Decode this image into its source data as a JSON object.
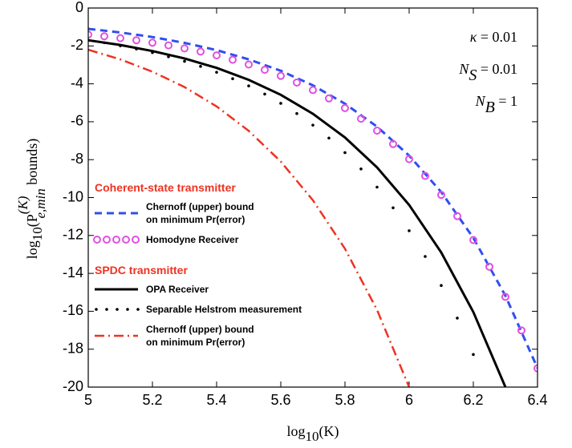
{
  "chart_data": {
    "type": "line",
    "xlabel": {
      "pre": "log",
      "sub": "10",
      "post": "(K)"
    },
    "ylabel": {
      "pre": "log",
      "sub": "10",
      "mid": "(P",
      "sup": "(K)",
      "sub2": "e,min",
      "post": " bounds)"
    },
    "annotations": [
      {
        "base": "κ",
        "tail": " = 0.01"
      },
      {
        "base": "N",
        "sub": "S",
        "tail": " = 0.01"
      },
      {
        "base": "N",
        "sub": "B",
        "tail": " = 1"
      }
    ],
    "xlim": [
      5,
      6.4
    ],
    "ylim": [
      -20,
      0
    ],
    "xticks": [
      5,
      5.2,
      5.4,
      5.6,
      5.8,
      6,
      6.2,
      6.4
    ],
    "yticks": [
      0,
      -2,
      -4,
      -6,
      -8,
      -10,
      -12,
      -14,
      -16,
      -18,
      -20
    ],
    "grid": false,
    "series": [
      {
        "name": "Chernoff (upper) bound\non minimum Pr(error)",
        "group": "Coherent-state transmitter",
        "style": "dashed",
        "color": "#2f4ff0",
        "x": [
          5,
          5.1,
          5.2,
          5.3,
          5.4,
          5.5,
          5.6,
          5.7,
          5.8,
          5.9,
          6,
          6.1,
          6.2,
          6.3,
          6.4
        ],
        "values": [
          -1.1,
          -1.29,
          -1.53,
          -1.84,
          -2.22,
          -2.71,
          -3.31,
          -4.08,
          -5.05,
          -6.26,
          -7.79,
          -9.71,
          -12.13,
          -15.18,
          -19.0
        ]
      },
      {
        "name": "Homodyne Receiver",
        "group": "Coherent-state transmitter",
        "style": "circles",
        "color": "#e050e0",
        "x": [
          5,
          5.05,
          5.1,
          5.15,
          5.2,
          5.25,
          5.3,
          5.35,
          5.4,
          5.45,
          5.5,
          5.55,
          5.6,
          5.65,
          5.7,
          5.75,
          5.8,
          5.85,
          5.9,
          5.95,
          6,
          6.05,
          6.1,
          6.15,
          6.2,
          6.25,
          6.3,
          6.35,
          6.4
        ],
        "values": [
          -1.4,
          -1.49,
          -1.59,
          -1.7,
          -1.83,
          -1.97,
          -2.13,
          -2.3,
          -2.5,
          -2.73,
          -2.98,
          -3.26,
          -3.58,
          -3.93,
          -4.33,
          -4.77,
          -5.28,
          -5.84,
          -6.47,
          -7.18,
          -7.97,
          -8.86,
          -9.86,
          -10.98,
          -12.24,
          -13.65,
          -15.24,
          -17.01,
          -19.01
        ]
      },
      {
        "name": "OPA Receiver",
        "group": "SPDC transmitter",
        "style": "solid",
        "color": "#000000",
        "x": [
          5,
          5.1,
          5.2,
          5.3,
          5.4,
          5.5,
          5.6,
          5.7,
          5.8,
          5.9,
          6,
          6.1,
          6.2,
          6.3
        ],
        "values": [
          -1.7,
          -1.95,
          -2.27,
          -2.66,
          -3.16,
          -3.79,
          -4.58,
          -5.58,
          -6.83,
          -8.41,
          -10.39,
          -12.9,
          -16.04,
          -20.0
        ]
      },
      {
        "name": "Separable Helstrom measurement",
        "group": "SPDC transmitter",
        "style": "dots",
        "color": "#000000",
        "x": [
          5,
          5.05,
          5.1,
          5.15,
          5.2,
          5.25,
          5.3,
          5.35,
          5.4,
          5.45,
          5.5,
          5.55,
          5.6,
          5.65,
          5.7,
          5.75,
          5.8,
          5.85,
          5.9,
          5.95,
          6,
          6.05,
          6.1,
          6.15,
          6.2
        ],
        "values": [
          -1.7,
          -1.83,
          -1.99,
          -2.16,
          -2.35,
          -2.57,
          -2.81,
          -3.08,
          -3.39,
          -3.73,
          -4.11,
          -4.54,
          -5.03,
          -5.57,
          -6.18,
          -6.86,
          -7.63,
          -8.49,
          -9.45,
          -10.54,
          -11.75,
          -13.11,
          -14.64,
          -16.36,
          -18.28
        ]
      },
      {
        "name": "Chernoff (upper) bound\non minimum Pr(error)",
        "group": "SPDC transmitter",
        "style": "dashdot",
        "color": "#ee3322",
        "x": [
          5,
          5.1,
          5.2,
          5.3,
          5.4,
          5.5,
          5.6,
          5.7,
          5.8,
          5.9,
          6
        ],
        "values": [
          -2.2,
          -2.71,
          -3.36,
          -4.17,
          -5.19,
          -6.48,
          -8.1,
          -10.14,
          -12.7,
          -15.93,
          -20.0
        ]
      }
    ]
  }
}
